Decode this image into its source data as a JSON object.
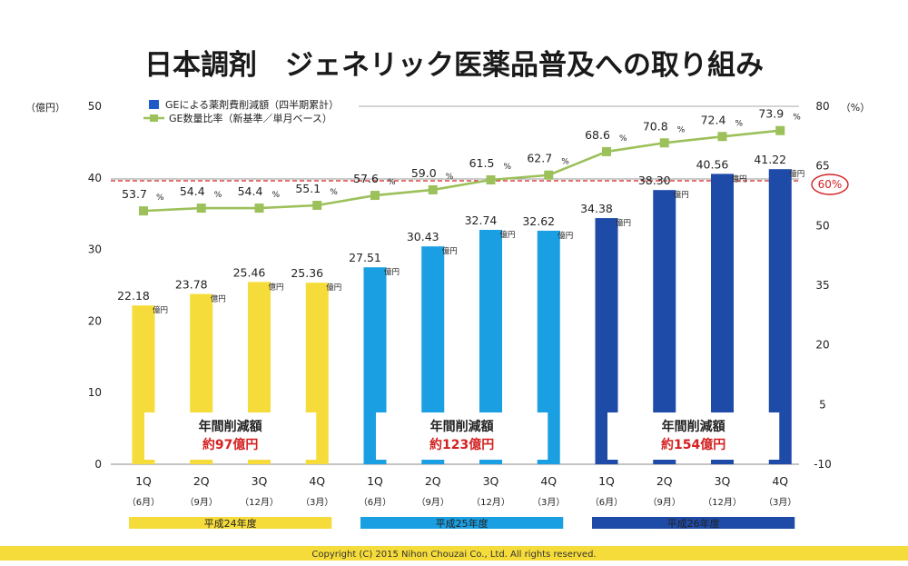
{
  "header": {
    "title": "日本調剤　ジェネリック医薬品普及への取り組み"
  },
  "chart_data": {
    "type": "bar",
    "title": "日本調剤　ジェネリック医薬品普及への取り組み",
    "categories": [
      "1Q",
      "2Q",
      "3Q",
      "4Q",
      "1Q",
      "2Q",
      "3Q",
      "4Q",
      "1Q",
      "2Q",
      "3Q",
      "4Q"
    ],
    "months": [
      "（6月）",
      "（9月）",
      "（12月）",
      "（3月）",
      "（6月）",
      "（9月）",
      "（12月）",
      "（3月）",
      "（6月）",
      "（9月）",
      "（12月）",
      "（3月）"
    ],
    "series": [
      {
        "name": "GEによる薬剤費削減額（四半期累計）",
        "type": "bar",
        "axis": "left",
        "values": [
          22.18,
          23.78,
          25.46,
          25.36,
          27.51,
          30.43,
          32.74,
          32.62,
          34.38,
          38.3,
          40.56,
          41.22
        ],
        "labels": [
          "22.18",
          "23.78",
          "25.46",
          "25.36",
          "27.51",
          "30.43",
          "32.74",
          "32.62",
          "34.38",
          "38.30",
          "40.56",
          "41.22"
        ],
        "unit": "億円",
        "colors": [
          "#f6dc3a",
          "#1a9fe3",
          "#1e4aa8"
        ]
      },
      {
        "name": "GE数量比率（新基準／単月ベース）",
        "type": "line",
        "axis": "right",
        "values": [
          53.7,
          54.4,
          54.4,
          55.1,
          57.6,
          59.0,
          61.5,
          62.7,
          68.6,
          70.8,
          72.4,
          73.9
        ],
        "labels": [
          "53.7",
          "54.4",
          "54.4",
          "55.1",
          "57.6",
          "59.0",
          "61.5",
          "62.7",
          "68.6",
          "70.8",
          "72.4",
          "73.9"
        ],
        "unit": "%",
        "color": "#9cc05a"
      }
    ],
    "left_axis": {
      "unit": "（億円）",
      "ylim": [
        0,
        50
      ],
      "ticks": [
        "0",
        "10",
        "20",
        "30",
        "40",
        "50"
      ]
    },
    "right_axis": {
      "unit": "（%）",
      "ylim": [
        -10,
        80
      ],
      "ticks": [
        "-10",
        "5",
        "20",
        "35",
        "50",
        "65",
        "80"
      ]
    },
    "reference_line": {
      "value": 60,
      "label": "60%",
      "color": "#d42020"
    },
    "groups": [
      {
        "label": "平成24年度",
        "annotation_title": "年間削減額",
        "annotation_value": "約97億円",
        "color": "#f6dc3a"
      },
      {
        "label": "平成25年度",
        "annotation_title": "年間削減額",
        "annotation_value": "約123億円",
        "color": "#1a9fe3"
      },
      {
        "label": "平成26年度",
        "annotation_title": "年間削減額",
        "annotation_value": "約154億円",
        "color": "#1e4aa8"
      }
    ],
    "legend_position": "top",
    "grid": false
  },
  "footer": {
    "copyright": "Copyright (C) 2015 Nihon Chouzai Co., Ltd. All rights reserved.",
    "band_color": "#f6dc3a"
  }
}
